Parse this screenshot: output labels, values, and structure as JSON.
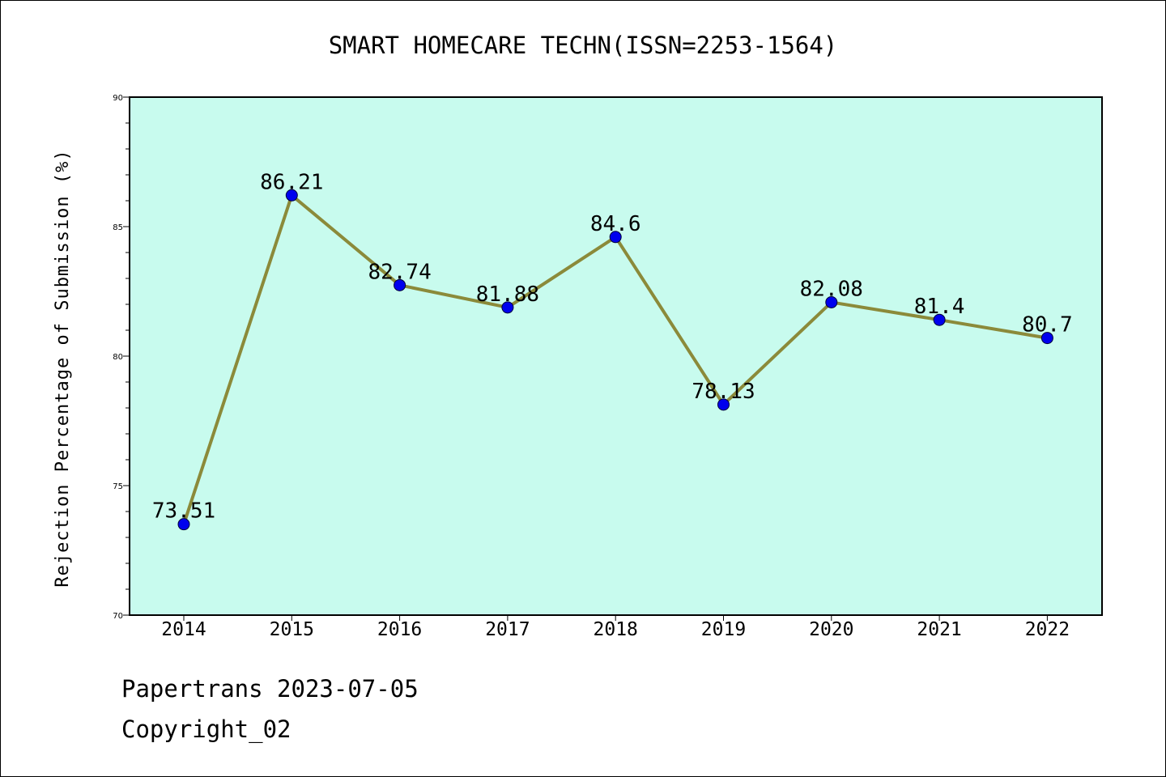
{
  "footer": {
    "line1": "Papertrans 2023-07-05",
    "line2": "Copyright_02"
  },
  "colors": {
    "plot_background": "#c8fbee",
    "line": "#8b8a3a",
    "marker": "#0000ee",
    "axis": "#000000"
  },
  "chart_data": {
    "type": "line",
    "title": "SMART HOMECARE TECHN(ISSN=2253-1564)",
    "xlabel": "",
    "ylabel": "Rejection Percentage of Submission (%)",
    "categories": [
      "2014",
      "2015",
      "2016",
      "2017",
      "2018",
      "2019",
      "2020",
      "2021",
      "2022"
    ],
    "values": [
      73.51,
      86.21,
      82.74,
      81.88,
      84.6,
      78.13,
      82.08,
      81.4,
      80.7
    ],
    "data_labels": [
      "73.51",
      "86.21",
      "82.74",
      "81.88",
      "84.6",
      "78.13",
      "82.08",
      "81.4",
      "80.7"
    ],
    "ylim": [
      70,
      90
    ],
    "yticks": [
      70,
      75,
      80,
      85,
      90
    ],
    "grid": false,
    "legend": "none"
  }
}
